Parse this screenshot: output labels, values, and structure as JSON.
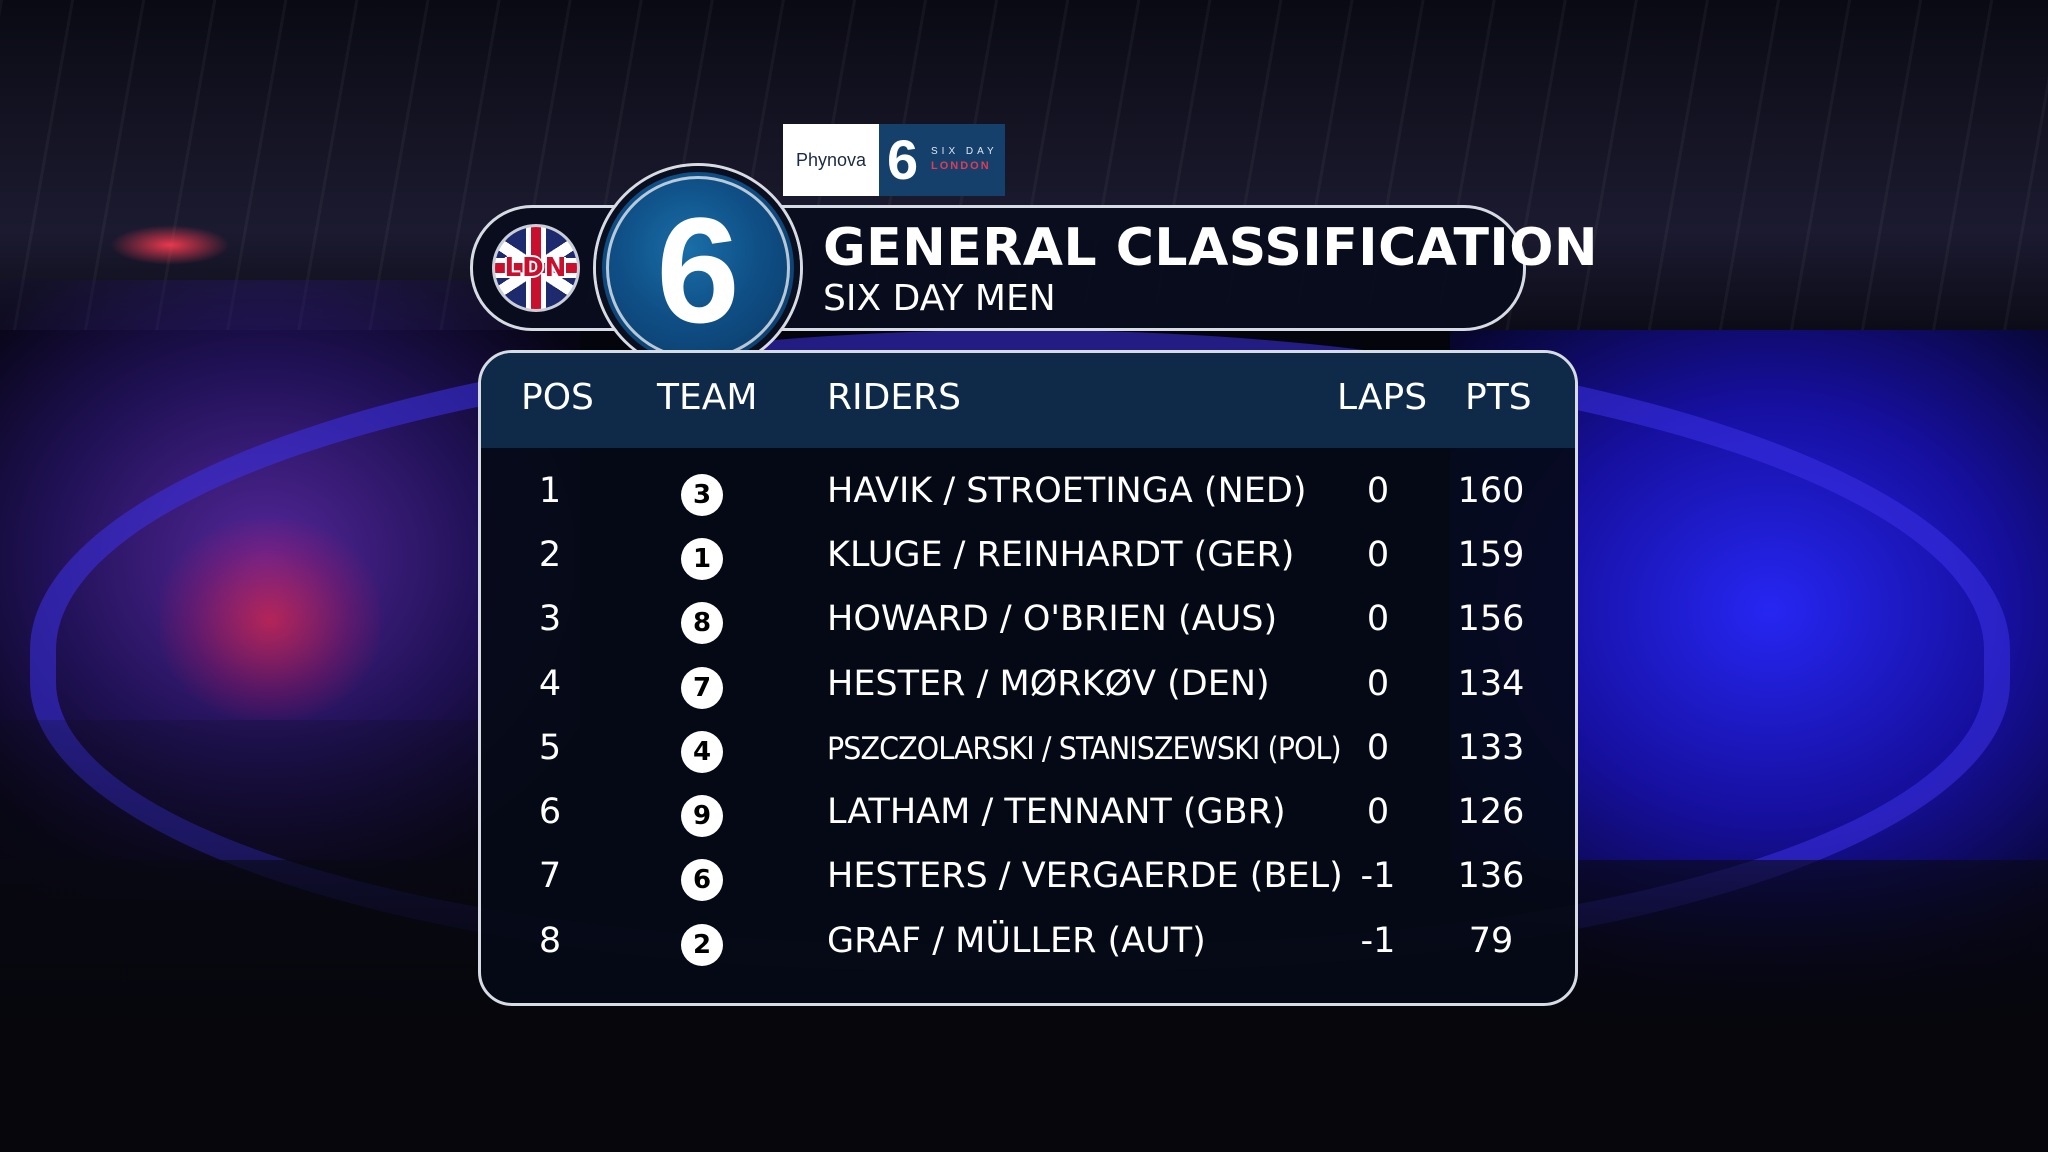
{
  "sponsor": {
    "brand": "Phynova",
    "event_numeral": "6",
    "event_line1": "SIX DAY",
    "event_line2": "LONDON"
  },
  "badge": {
    "city": "LDN",
    "numeral": "6"
  },
  "title": {
    "main": "GENERAL CLASSIFICATION",
    "sub": "SIX DAY MEN"
  },
  "table": {
    "headers": {
      "pos": "POS",
      "team": "TEAM",
      "riders": "RIDERS",
      "laps": "LAPS",
      "pts": "PTS"
    },
    "rows": [
      {
        "pos": "1",
        "team": "3",
        "riders": "HAVIK / STROETINGA (NED)",
        "laps": "0",
        "pts": "160"
      },
      {
        "pos": "2",
        "team": "1",
        "riders": "KLUGE / REINHARDT (GER)",
        "laps": "0",
        "pts": "159"
      },
      {
        "pos": "3",
        "team": "8",
        "riders": "HOWARD / O'BRIEN (AUS)",
        "laps": "0",
        "pts": "156"
      },
      {
        "pos": "4",
        "team": "7",
        "riders": "HESTER / MØRKØV (DEN)",
        "laps": "0",
        "pts": "134"
      },
      {
        "pos": "5",
        "team": "4",
        "riders": "PSZCZOLARSKI / STANISZEWSKI (POL)",
        "laps": "0",
        "pts": "133"
      },
      {
        "pos": "6",
        "team": "9",
        "riders": "LATHAM / TENNANT (GBR)",
        "laps": "0",
        "pts": "126"
      },
      {
        "pos": "7",
        "team": "6",
        "riders": "HESTERS / VERGAERDE (BEL)",
        "laps": "-1",
        "pts": "136"
      },
      {
        "pos": "8",
        "team": "2",
        "riders": "GRAF / MÜLLER (AUT)",
        "laps": "-1",
        "pts": "79"
      }
    ]
  },
  "colors": {
    "header_band": "#0e2a48",
    "panel": "#060a16",
    "badge_blue": "#0f4f86",
    "accent_red": "#c8102e"
  }
}
